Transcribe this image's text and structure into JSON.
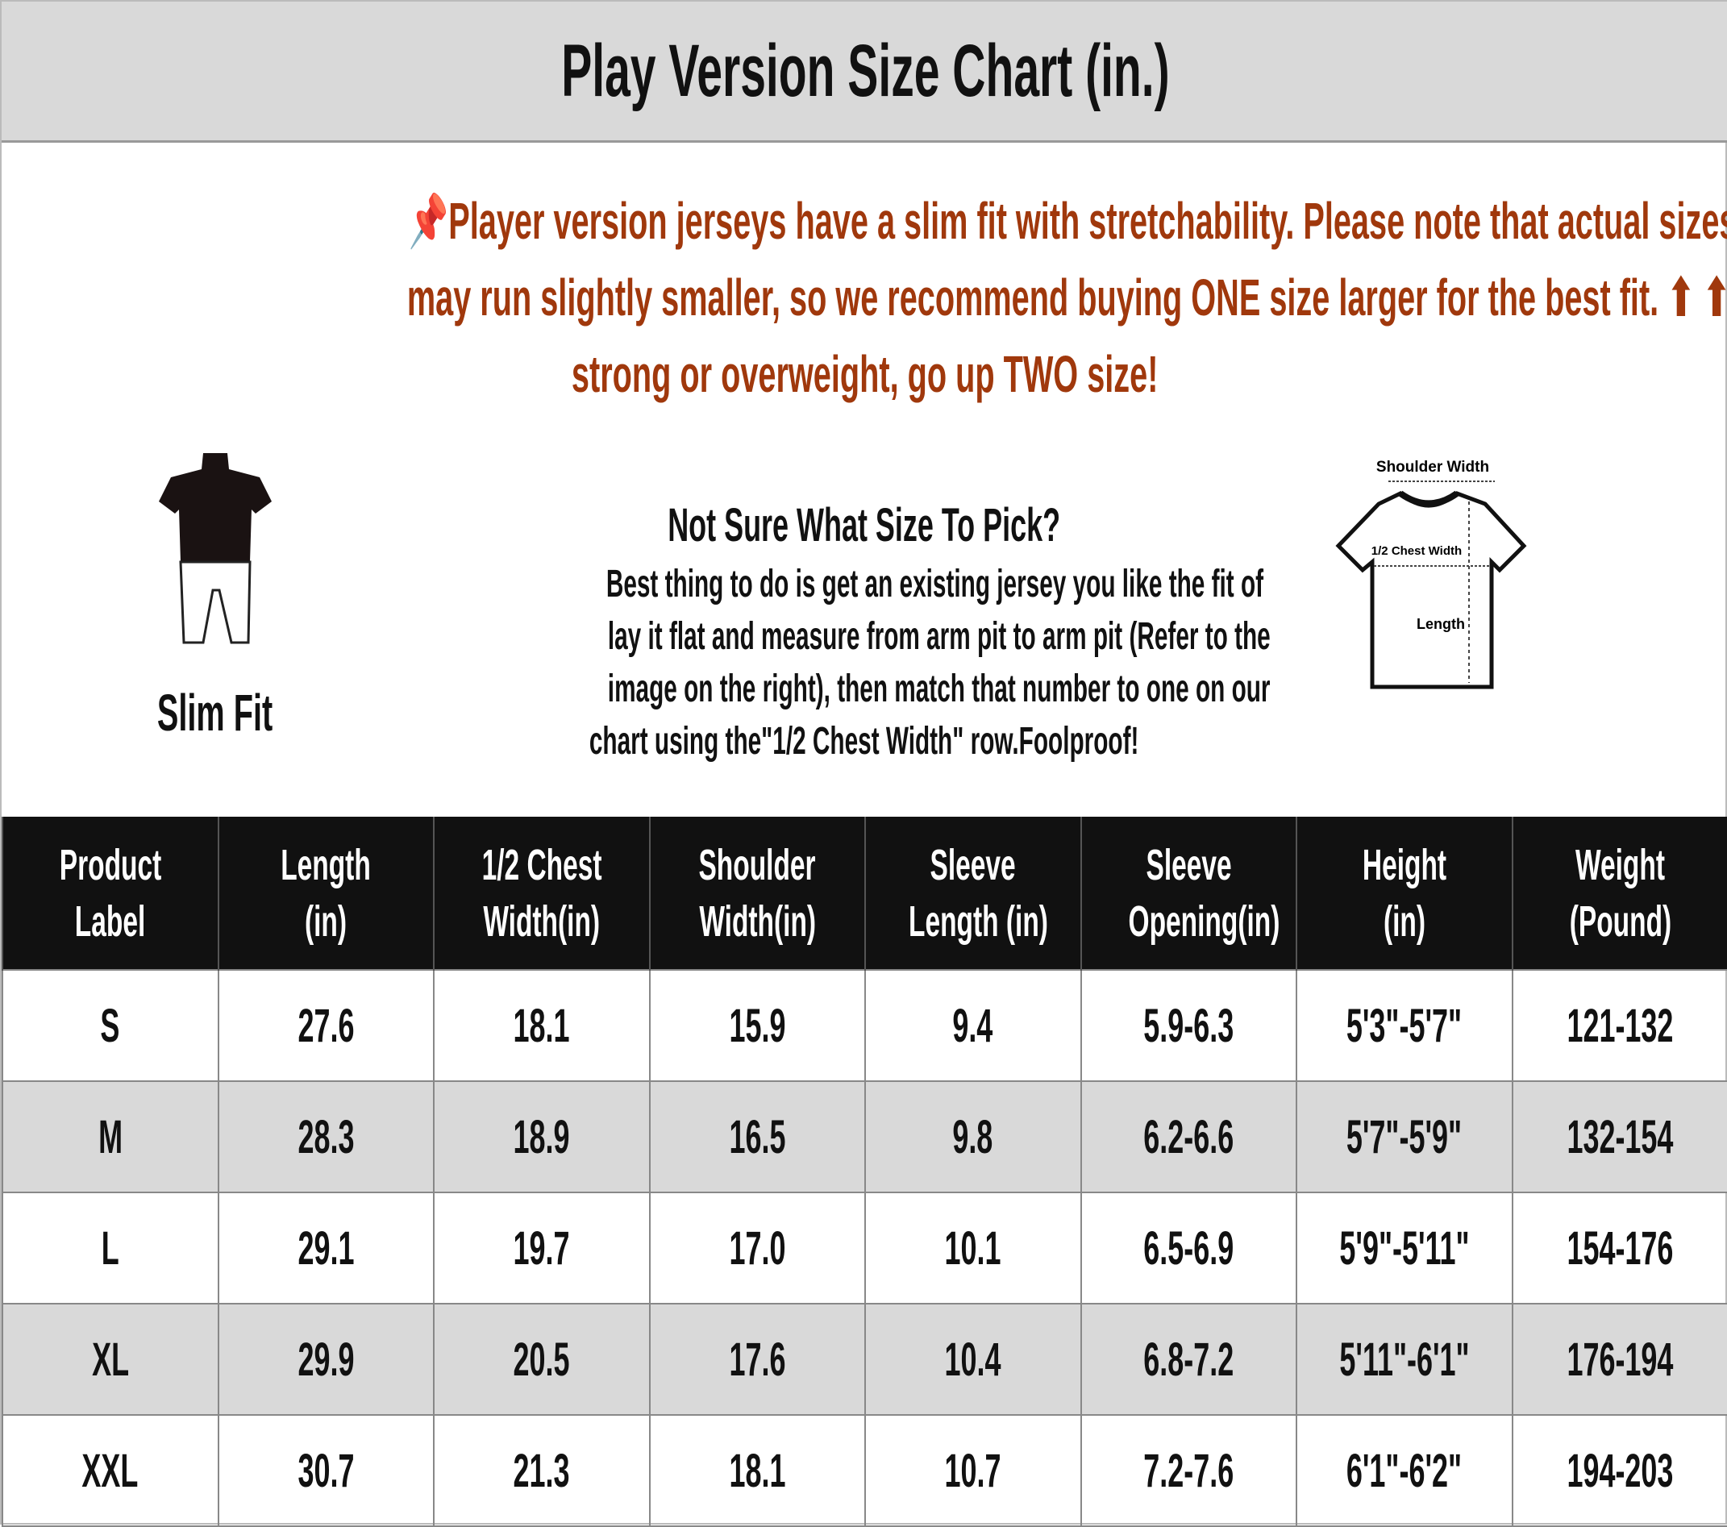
{
  "header": {
    "title": "Play Version Size Chart (in.)"
  },
  "notice": {
    "icon": "pushpin-icon",
    "color": "#a0380c",
    "lines": [
      "Player version jerseys have a slim fit with stretchability. Please note that actual sizes",
      "may run slightly smaller, so we recommend buying ONE size larger for the best fit. ⬆ ⬆",
      "strong or overweight, go up TWO size!"
    ]
  },
  "fit": {
    "label": "Slim Fit"
  },
  "help": {
    "heading": "Not Sure What Size To Pick?",
    "lines": [
      "Best thing to do is get an existing jersey you like the fit of",
      "lay it flat and measure from arm pit to arm pit (Refer to the",
      "image on the right), then match that number to one on our",
      "chart using the\"1/2 Chest Width\" row.Foolproof!"
    ]
  },
  "diagram": {
    "shoulder": "Shoulder Width",
    "chest": "1/2 Chest Width",
    "length": "Length"
  },
  "table": {
    "headers": [
      [
        "Product",
        "Label"
      ],
      [
        "Length",
        "(in)"
      ],
      [
        "1/2 Chest",
        "Width(in)"
      ],
      [
        "Shoulder",
        "Width(in)"
      ],
      [
        "Sleeve",
        "Length (in)"
      ],
      [
        "Sleeve",
        "Opening(in)"
      ],
      [
        "Height",
        "(in)"
      ],
      [
        "Weight",
        "(Pound)"
      ]
    ],
    "rows": [
      [
        "S",
        "27.6",
        "18.1",
        "15.9",
        "9.4",
        "5.9-6.3",
        "5'3\"-5'7\"",
        "121-132"
      ],
      [
        "M",
        "28.3",
        "18.9",
        "16.5",
        "9.8",
        "6.2-6.6",
        "5'7\"-5'9\"",
        "132-154"
      ],
      [
        "L",
        "29.1",
        "19.7",
        "17.0",
        "10.1",
        "6.5-6.9",
        "5'9\"-5'11\"",
        "154-176"
      ],
      [
        "XL",
        "29.9",
        "20.5",
        "17.6",
        "10.4",
        "6.8-7.2",
        "5'11\"-6'1\"",
        "176-194"
      ],
      [
        "XXL",
        "30.7",
        "21.3",
        "18.1",
        "10.7",
        "7.2-7.6",
        "6'1\"-6'2\"",
        "194-203"
      ]
    ]
  }
}
